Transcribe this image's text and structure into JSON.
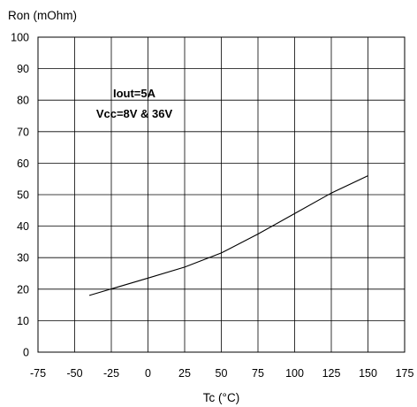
{
  "chart_data": {
    "type": "line",
    "title": "",
    "xlabel": "Tc (°C)",
    "ylabel": "Ron (mOhm)",
    "xlim": [
      -75,
      175
    ],
    "ylim": [
      0,
      100
    ],
    "x_ticks": [
      "-75",
      "-50",
      "-25",
      "0",
      "25",
      "50",
      "75",
      "100",
      "125",
      "150",
      "175"
    ],
    "y_ticks": [
      "0",
      "10",
      "20",
      "30",
      "40",
      "50",
      "60",
      "70",
      "80",
      "90",
      "100"
    ],
    "grid": true,
    "annotations": [
      "Iout=5A",
      "Vcc=8V & 36V"
    ],
    "series": [
      {
        "x": [
          -40,
          0,
          25,
          50,
          75,
          100,
          125,
          150
        ],
        "y": [
          18,
          23.5,
          27,
          31.5,
          37.5,
          44,
          50.5,
          56
        ]
      }
    ]
  }
}
